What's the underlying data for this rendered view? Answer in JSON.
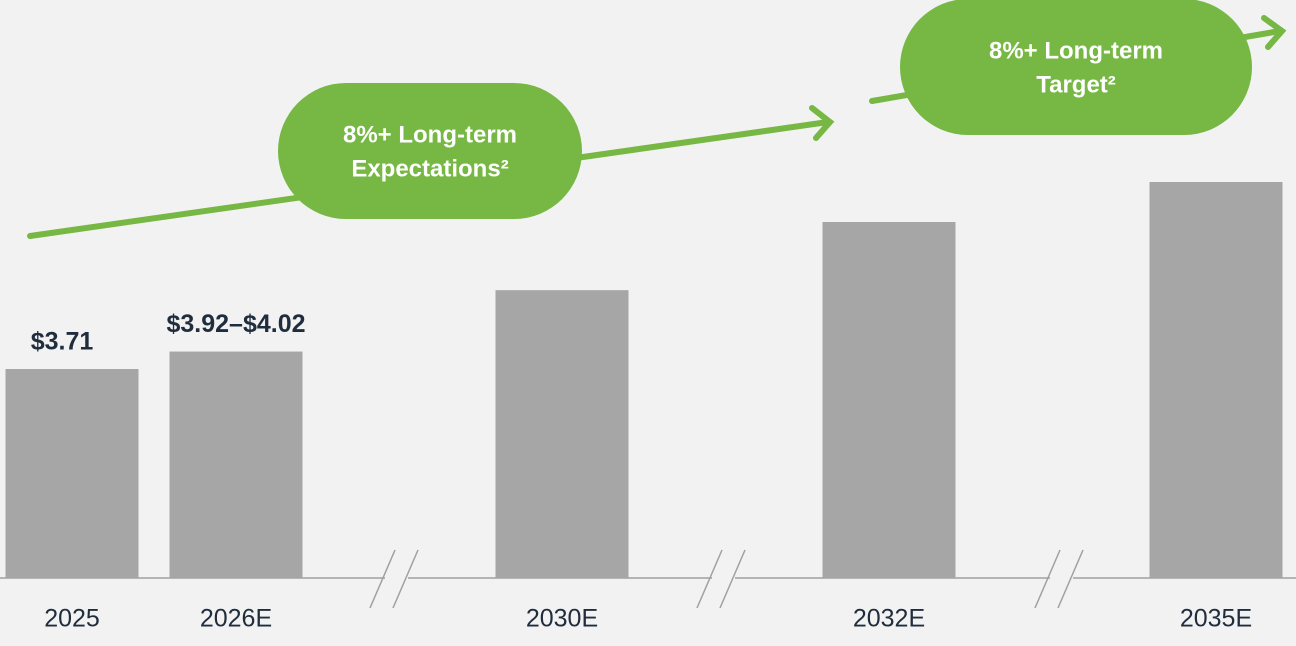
{
  "chart_data": {
    "type": "bar",
    "categories": [
      "2025",
      "2026E",
      "2030E",
      "2032E",
      "2035E"
    ],
    "values": [
      3.71,
      4.02,
      5.11,
      6.32,
      7.03
    ],
    "value_labels": [
      "$3.71",
      "$3.92–$4.02",
      null,
      null,
      null
    ],
    "color": "#a6a6a6",
    "annotations": [
      {
        "lines": [
          "8%+ Long-term",
          "Expectations²"
        ],
        "color": "#76b843"
      },
      {
        "lines": [
          "8%+ Long-term",
          "Target²"
        ],
        "color": "#76b843"
      }
    ]
  }
}
